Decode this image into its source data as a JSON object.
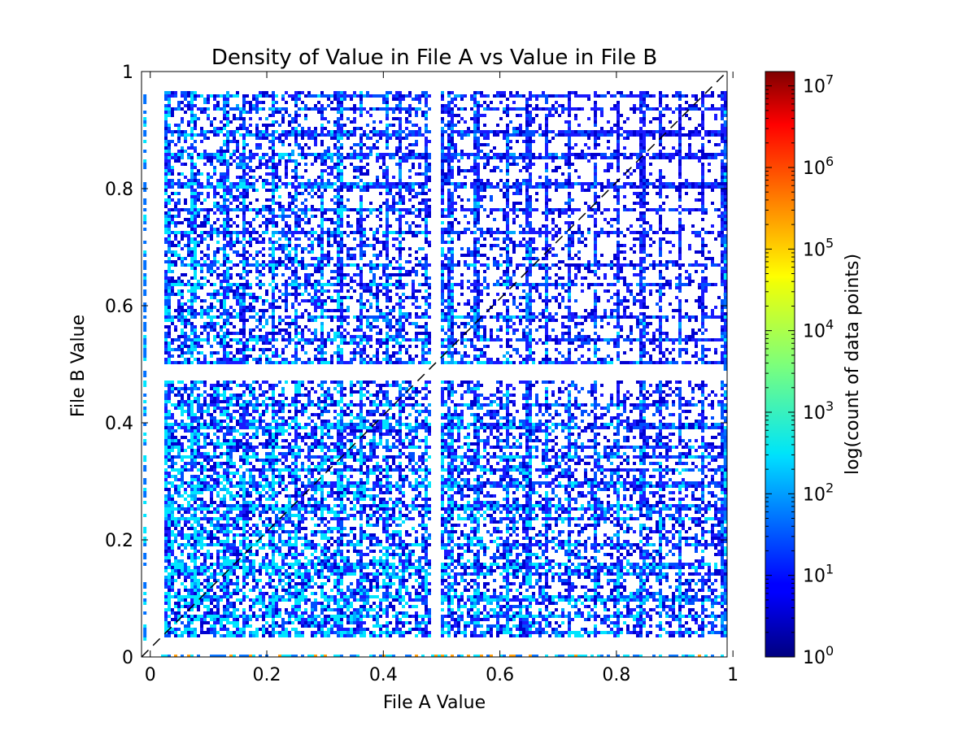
{
  "chart_data": {
    "type": "heatmap",
    "title": "Density of Value in File A vs Value in File B",
    "xlabel": "File A Value",
    "ylabel": "File B Value",
    "xlim": [
      -0.015,
      0.99
    ],
    "ylim": [
      0,
      1
    ],
    "x_ticks": [
      0,
      0.2,
      0.4,
      0.6,
      0.8,
      1
    ],
    "x_tick_labels": [
      "0",
      "0.2",
      "0.4",
      "0.6",
      "0.8",
      "1"
    ],
    "y_ticks": [
      0,
      0.2,
      0.4,
      0.6,
      0.8,
      1
    ],
    "y_tick_labels": [
      "0",
      "0.2",
      "0.4",
      "0.6",
      "0.8",
      "1"
    ],
    "colorbar": {
      "label": "log(count of data points)",
      "scale": "log",
      "range": [
        1,
        15000000
      ],
      "ticks": [
        1,
        10,
        100,
        1000,
        10000,
        100000,
        1000000,
        10000000
      ],
      "tick_labels": [
        {
          "base": "10",
          "exp": "0"
        },
        {
          "base": "10",
          "exp": "1"
        },
        {
          "base": "10",
          "exp": "2"
        },
        {
          "base": "10",
          "exp": "3"
        },
        {
          "base": "10",
          "exp": "4"
        },
        {
          "base": "10",
          "exp": "5"
        },
        {
          "base": "10",
          "exp": "6"
        },
        {
          "base": "10",
          "exp": "7"
        }
      ],
      "colormap": "jet"
    },
    "reference_line": {
      "style": "dashed",
      "color": "#000000",
      "from": [
        -0.015,
        0
      ],
      "to": [
        0.99,
        1
      ]
    },
    "grid": false,
    "block_edges_x": [
      0.03,
      0.075,
      0.13,
      0.16,
      0.21,
      0.25,
      0.295,
      0.325,
      0.36,
      0.405,
      0.43,
      0.475,
      0.5,
      0.515,
      0.56,
      0.615,
      0.65,
      0.68,
      0.72,
      0.765,
      0.805,
      0.845,
      0.875,
      0.91,
      0.95,
      0.985
    ],
    "block_edges_y": [
      0.04,
      0.07,
      0.1,
      0.14,
      0.155,
      0.19,
      0.235,
      0.255,
      0.295,
      0.32,
      0.34,
      0.36,
      0.395,
      0.43,
      0.475,
      0.5,
      0.54,
      0.58,
      0.635,
      0.67,
      0.725,
      0.765,
      0.805,
      0.855,
      0.895,
      0.935,
      0.96
    ],
    "dense_band_edges_y": [
      0.025,
      0.99
    ],
    "dense_band_edges_x": [
      -0.01,
      0.985
    ]
  }
}
